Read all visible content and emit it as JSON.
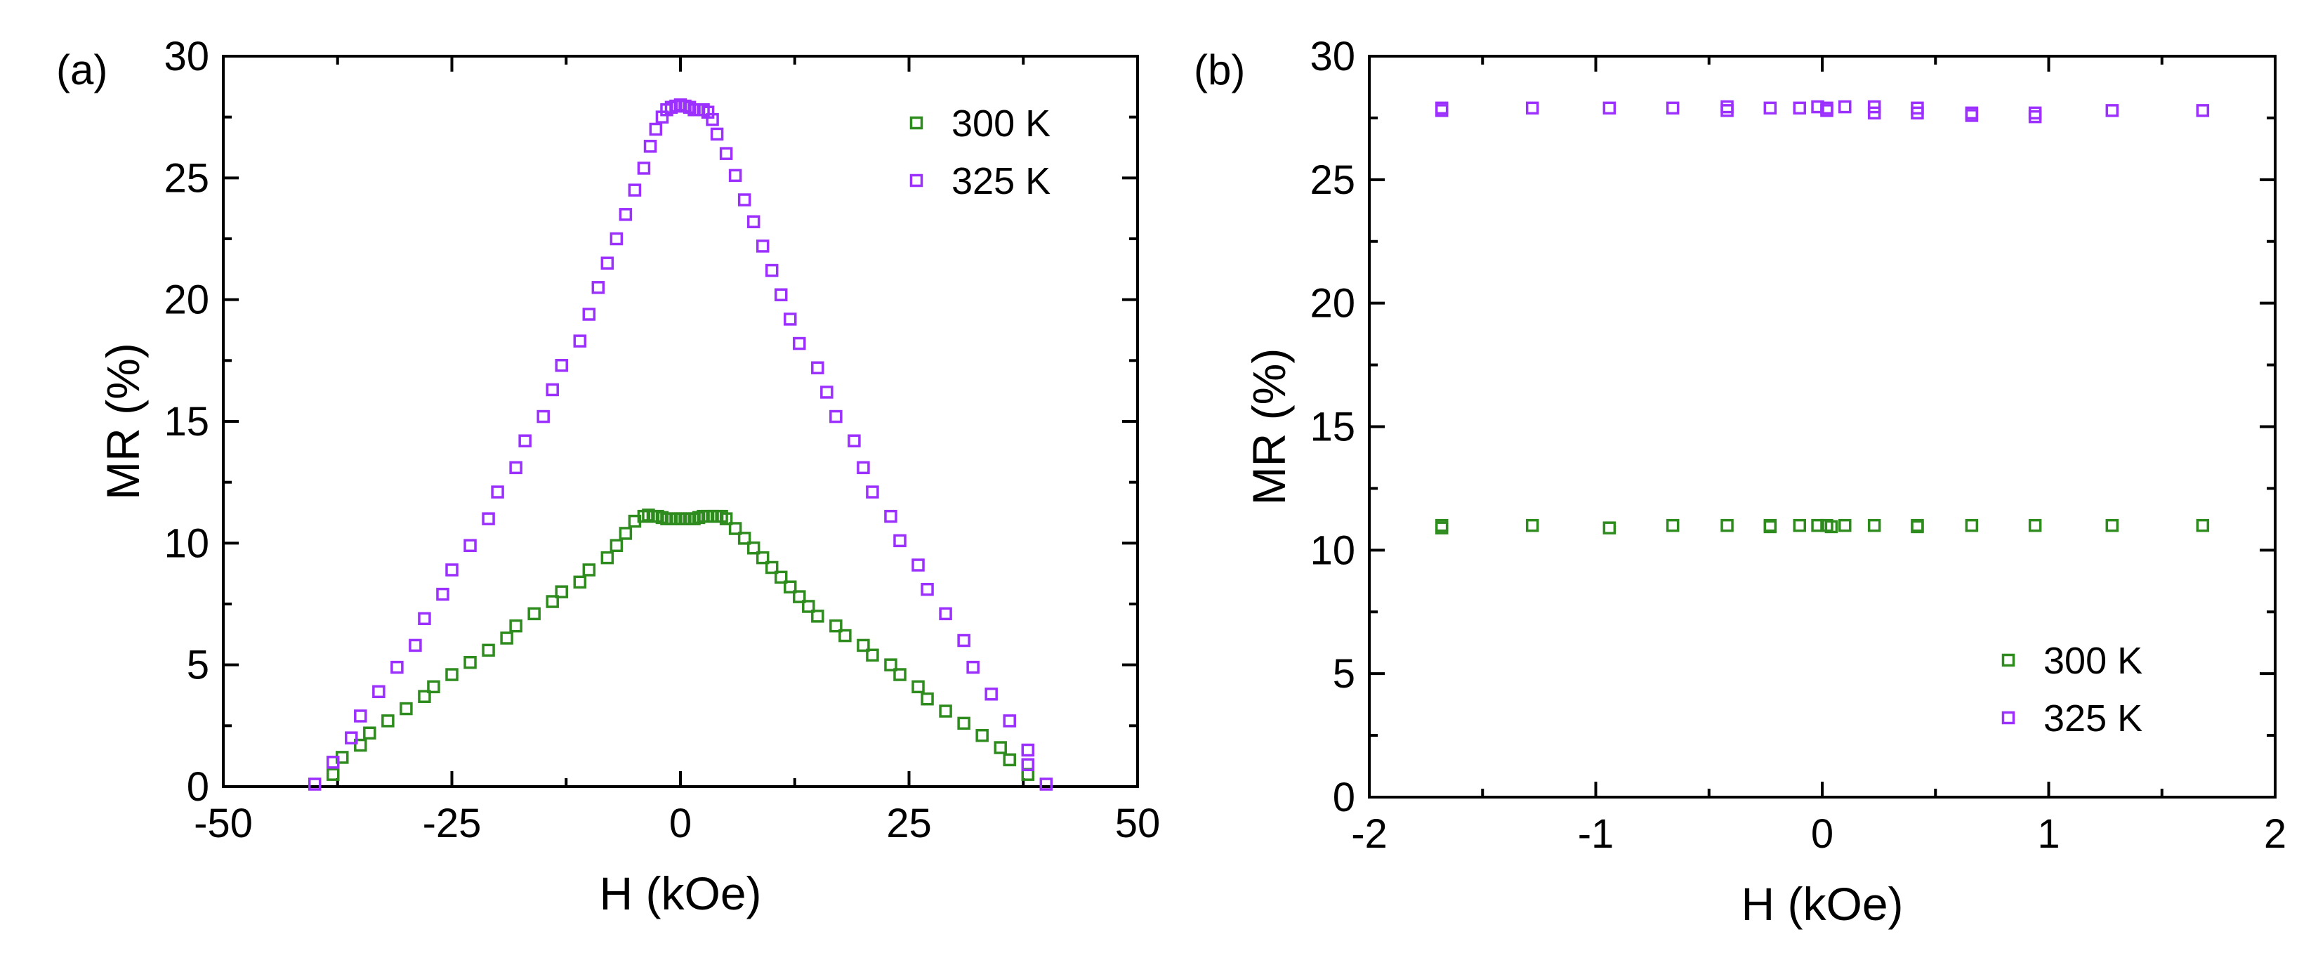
{
  "chart_data": [
    {
      "type": "scatter",
      "panel_label": "(a)",
      "xlabel": "H (kOe)",
      "ylabel": "MR (%)",
      "xlim": [
        -50,
        50
      ],
      "ylim": [
        0,
        30
      ],
      "xticks": [
        -50,
        -25,
        0,
        25,
        50
      ],
      "xtick_labels": [
        "-50",
        "-25",
        "0",
        "25",
        "50"
      ],
      "yticks": [
        0,
        5,
        10,
        15,
        20,
        25,
        30
      ],
      "ytick_labels": [
        "0",
        "5",
        "10",
        "15",
        "20",
        "25",
        "30"
      ],
      "legend_position": "top-right",
      "series": [
        {
          "name": "300 K",
          "color": "#2e8b1e",
          "points": [
            [
              -38,
              0.5
            ],
            [
              -37,
              1.2
            ],
            [
              -35,
              1.7
            ],
            [
              -34,
              2.2
            ],
            [
              -32,
              2.7
            ],
            [
              -30,
              3.2
            ],
            [
              -28,
              3.7
            ],
            [
              -27,
              4.1
            ],
            [
              -25,
              4.6
            ],
            [
              -23,
              5.1
            ],
            [
              -21,
              5.6
            ],
            [
              -19,
              6.1
            ],
            [
              -18,
              6.6
            ],
            [
              -16,
              7.1
            ],
            [
              -14,
              7.6
            ],
            [
              -13,
              8.0
            ],
            [
              -11,
              8.4
            ],
            [
              -10,
              8.9
            ],
            [
              -8,
              9.4
            ],
            [
              -7,
              9.9
            ],
            [
              -6,
              10.4
            ],
            [
              -5,
              10.9
            ],
            [
              -4,
              11.1
            ],
            [
              -3.5,
              11.15
            ],
            [
              -3,
              11.1
            ],
            [
              -2.5,
              11.1
            ],
            [
              -2,
              11.05
            ],
            [
              -1.5,
              11.0
            ],
            [
              -1,
              11.0
            ],
            [
              -0.5,
              11.0
            ],
            [
              0,
              11.0
            ],
            [
              0.5,
              11.0
            ],
            [
              1,
              11.0
            ],
            [
              1.5,
              11.0
            ],
            [
              2,
              11.05
            ],
            [
              2.5,
              11.1
            ],
            [
              3,
              11.1
            ],
            [
              3.5,
              11.1
            ],
            [
              4,
              11.1
            ],
            [
              4.5,
              11.1
            ],
            [
              5,
              11.0
            ],
            [
              6,
              10.6
            ],
            [
              7,
              10.2
            ],
            [
              8,
              9.8
            ],
            [
              9,
              9.4
            ],
            [
              10,
              9.0
            ],
            [
              11,
              8.6
            ],
            [
              12,
              8.2
            ],
            [
              13,
              7.8
            ],
            [
              14,
              7.4
            ],
            [
              15,
              7.0
            ],
            [
              17,
              6.6
            ],
            [
              18,
              6.2
            ],
            [
              20,
              5.8
            ],
            [
              21,
              5.4
            ],
            [
              23,
              5.0
            ],
            [
              24,
              4.6
            ],
            [
              26,
              4.1
            ],
            [
              27,
              3.6
            ],
            [
              29,
              3.1
            ],
            [
              31,
              2.6
            ],
            [
              33,
              2.1
            ],
            [
              35,
              1.6
            ],
            [
              36,
              1.1
            ],
            [
              38,
              0.5
            ]
          ]
        },
        {
          "name": "325 K",
          "color": "#9b30ff",
          "points": [
            [
              -40,
              0.1
            ],
            [
              -38,
              1.0
            ],
            [
              -36,
              2.0
            ],
            [
              -35,
              2.9
            ],
            [
              -33,
              3.9
            ],
            [
              -31,
              4.9
            ],
            [
              -29,
              5.8
            ],
            [
              -28,
              6.9
            ],
            [
              -26,
              7.9
            ],
            [
              -25,
              8.9
            ],
            [
              -23,
              9.9
            ],
            [
              -21,
              11.0
            ],
            [
              -20,
              12.1
            ],
            [
              -18,
              13.1
            ],
            [
              -17,
              14.2
            ],
            [
              -15,
              15.2
            ],
            [
              -14,
              16.3
            ],
            [
              -13,
              17.3
            ],
            [
              -11,
              18.3
            ],
            [
              -10,
              19.4
            ],
            [
              -9,
              20.5
            ],
            [
              -8,
              21.5
            ],
            [
              -7,
              22.5
            ],
            [
              -6,
              23.5
            ],
            [
              -5,
              24.5
            ],
            [
              -4,
              25.4
            ],
            [
              -3.3,
              26.3
            ],
            [
              -2.7,
              27.0
            ],
            [
              -2,
              27.5
            ],
            [
              -1.5,
              27.8
            ],
            [
              -1,
              27.9
            ],
            [
              -0.5,
              27.95
            ],
            [
              0,
              28.0
            ],
            [
              0.5,
              27.95
            ],
            [
              1,
              27.9
            ],
            [
              1.5,
              27.8
            ],
            [
              2,
              27.8
            ],
            [
              2.5,
              27.8
            ],
            [
              3,
              27.7
            ],
            [
              3.5,
              27.4
            ],
            [
              4,
              26.8
            ],
            [
              5,
              26.0
            ],
            [
              6,
              25.1
            ],
            [
              7,
              24.1
            ],
            [
              8,
              23.2
            ],
            [
              9,
              22.2
            ],
            [
              10,
              21.2
            ],
            [
              11,
              20.2
            ],
            [
              12,
              19.2
            ],
            [
              13,
              18.2
            ],
            [
              15,
              17.2
            ],
            [
              16,
              16.2
            ],
            [
              17,
              15.2
            ],
            [
              19,
              14.2
            ],
            [
              20,
              13.1
            ],
            [
              21,
              12.1
            ],
            [
              23,
              11.1
            ],
            [
              24,
              10.1
            ],
            [
              26,
              9.1
            ],
            [
              27,
              8.1
            ],
            [
              29,
              7.1
            ],
            [
              31,
              6.0
            ],
            [
              32,
              4.9
            ],
            [
              34,
              3.8
            ],
            [
              36,
              2.7
            ],
            [
              38,
              1.5
            ],
            [
              38,
              0.9
            ],
            [
              40,
              0.1
            ]
          ]
        }
      ]
    },
    {
      "type": "scatter",
      "panel_label": "(b)",
      "xlabel": "H (kOe)",
      "ylabel": "MR (%)",
      "xlim": [
        -2,
        2
      ],
      "ylim": [
        0,
        30
      ],
      "xticks": [
        -2,
        -1,
        0,
        1,
        2
      ],
      "xtick_labels": [
        "-2",
        "-1",
        "0",
        "1",
        "2"
      ],
      "yticks": [
        0,
        5,
        10,
        15,
        20,
        25,
        30
      ],
      "ytick_labels": [
        "0",
        "5",
        "10",
        "15",
        "20",
        "25",
        "30"
      ],
      "legend_position": "bottom-right",
      "series": [
        {
          "name": "300 K",
          "color": "#2e8b1e",
          "points": [
            [
              -1.68,
              11.0
            ],
            [
              -1.68,
              10.9
            ],
            [
              -1.28,
              11.0
            ],
            [
              -0.94,
              10.9
            ],
            [
              -0.66,
              11.0
            ],
            [
              -0.42,
              11.0
            ],
            [
              -0.23,
              11.0
            ],
            [
              -0.23,
              10.95
            ],
            [
              -0.1,
              11.0
            ],
            [
              -0.02,
              11.0
            ],
            [
              0.02,
              11.0
            ],
            [
              0.04,
              10.95
            ],
            [
              0.1,
              11.0
            ],
            [
              0.23,
              11.0
            ],
            [
              0.42,
              11.0
            ],
            [
              0.42,
              10.95
            ],
            [
              0.66,
              11.0
            ],
            [
              0.94,
              11.0
            ],
            [
              1.28,
              11.0
            ],
            [
              1.68,
              11.0
            ]
          ]
        },
        {
          "name": "325 K",
          "color": "#9b30ff",
          "points": [
            [
              -1.68,
              27.9
            ],
            [
              -1.68,
              27.8
            ],
            [
              -1.28,
              27.9
            ],
            [
              -0.94,
              27.9
            ],
            [
              -0.66,
              27.9
            ],
            [
              -0.42,
              27.95
            ],
            [
              -0.42,
              27.8
            ],
            [
              -0.23,
              27.9
            ],
            [
              -0.1,
              27.9
            ],
            [
              -0.02,
              27.95
            ],
            [
              0.02,
              27.9
            ],
            [
              0.02,
              27.8
            ],
            [
              0.1,
              27.95
            ],
            [
              0.23,
              27.95
            ],
            [
              0.23,
              27.7
            ],
            [
              0.42,
              27.9
            ],
            [
              0.42,
              27.7
            ],
            [
              0.66,
              27.7
            ],
            [
              0.66,
              27.6
            ],
            [
              0.94,
              27.7
            ],
            [
              0.94,
              27.55
            ],
            [
              1.28,
              27.8
            ],
            [
              1.68,
              27.8
            ]
          ]
        }
      ]
    }
  ]
}
